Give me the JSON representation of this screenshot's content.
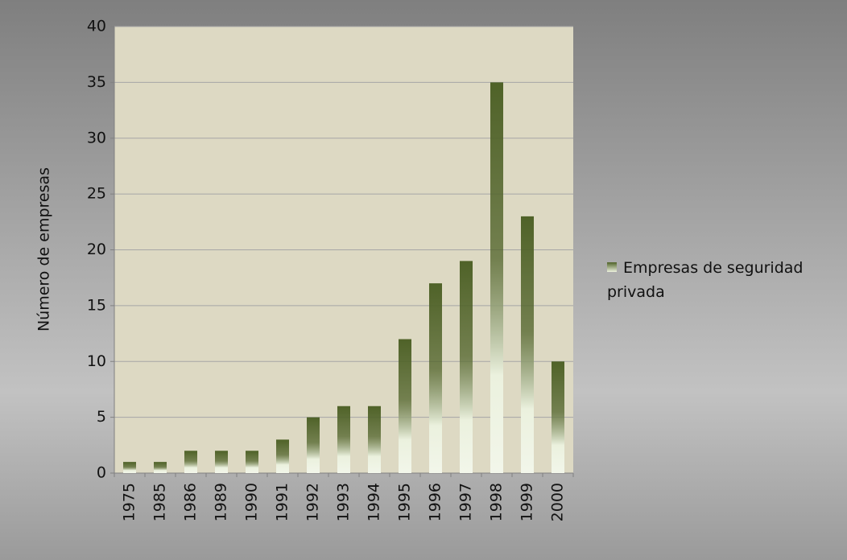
{
  "chart_data": {
    "type": "bar",
    "ylabel": "Número de empresas",
    "categories": [
      "1975",
      "1985",
      "1986",
      "1989",
      "1990",
      "1991",
      "1992",
      "1993",
      "1994",
      "1995",
      "1996",
      "1997",
      "1998",
      "1999",
      "2000"
    ],
    "series": [
      {
        "name": "Empresas de seguridad privada",
        "color": "#4f6228",
        "values": [
          1,
          1,
          2,
          2,
          2,
          3,
          5,
          6,
          6,
          12,
          17,
          19,
          35,
          23,
          10
        ]
      }
    ],
    "ylim": [
      0,
      40
    ],
    "yticks": [
      0,
      5,
      10,
      15,
      20,
      25,
      30,
      35,
      40
    ],
    "grid": true,
    "legend": "right"
  }
}
